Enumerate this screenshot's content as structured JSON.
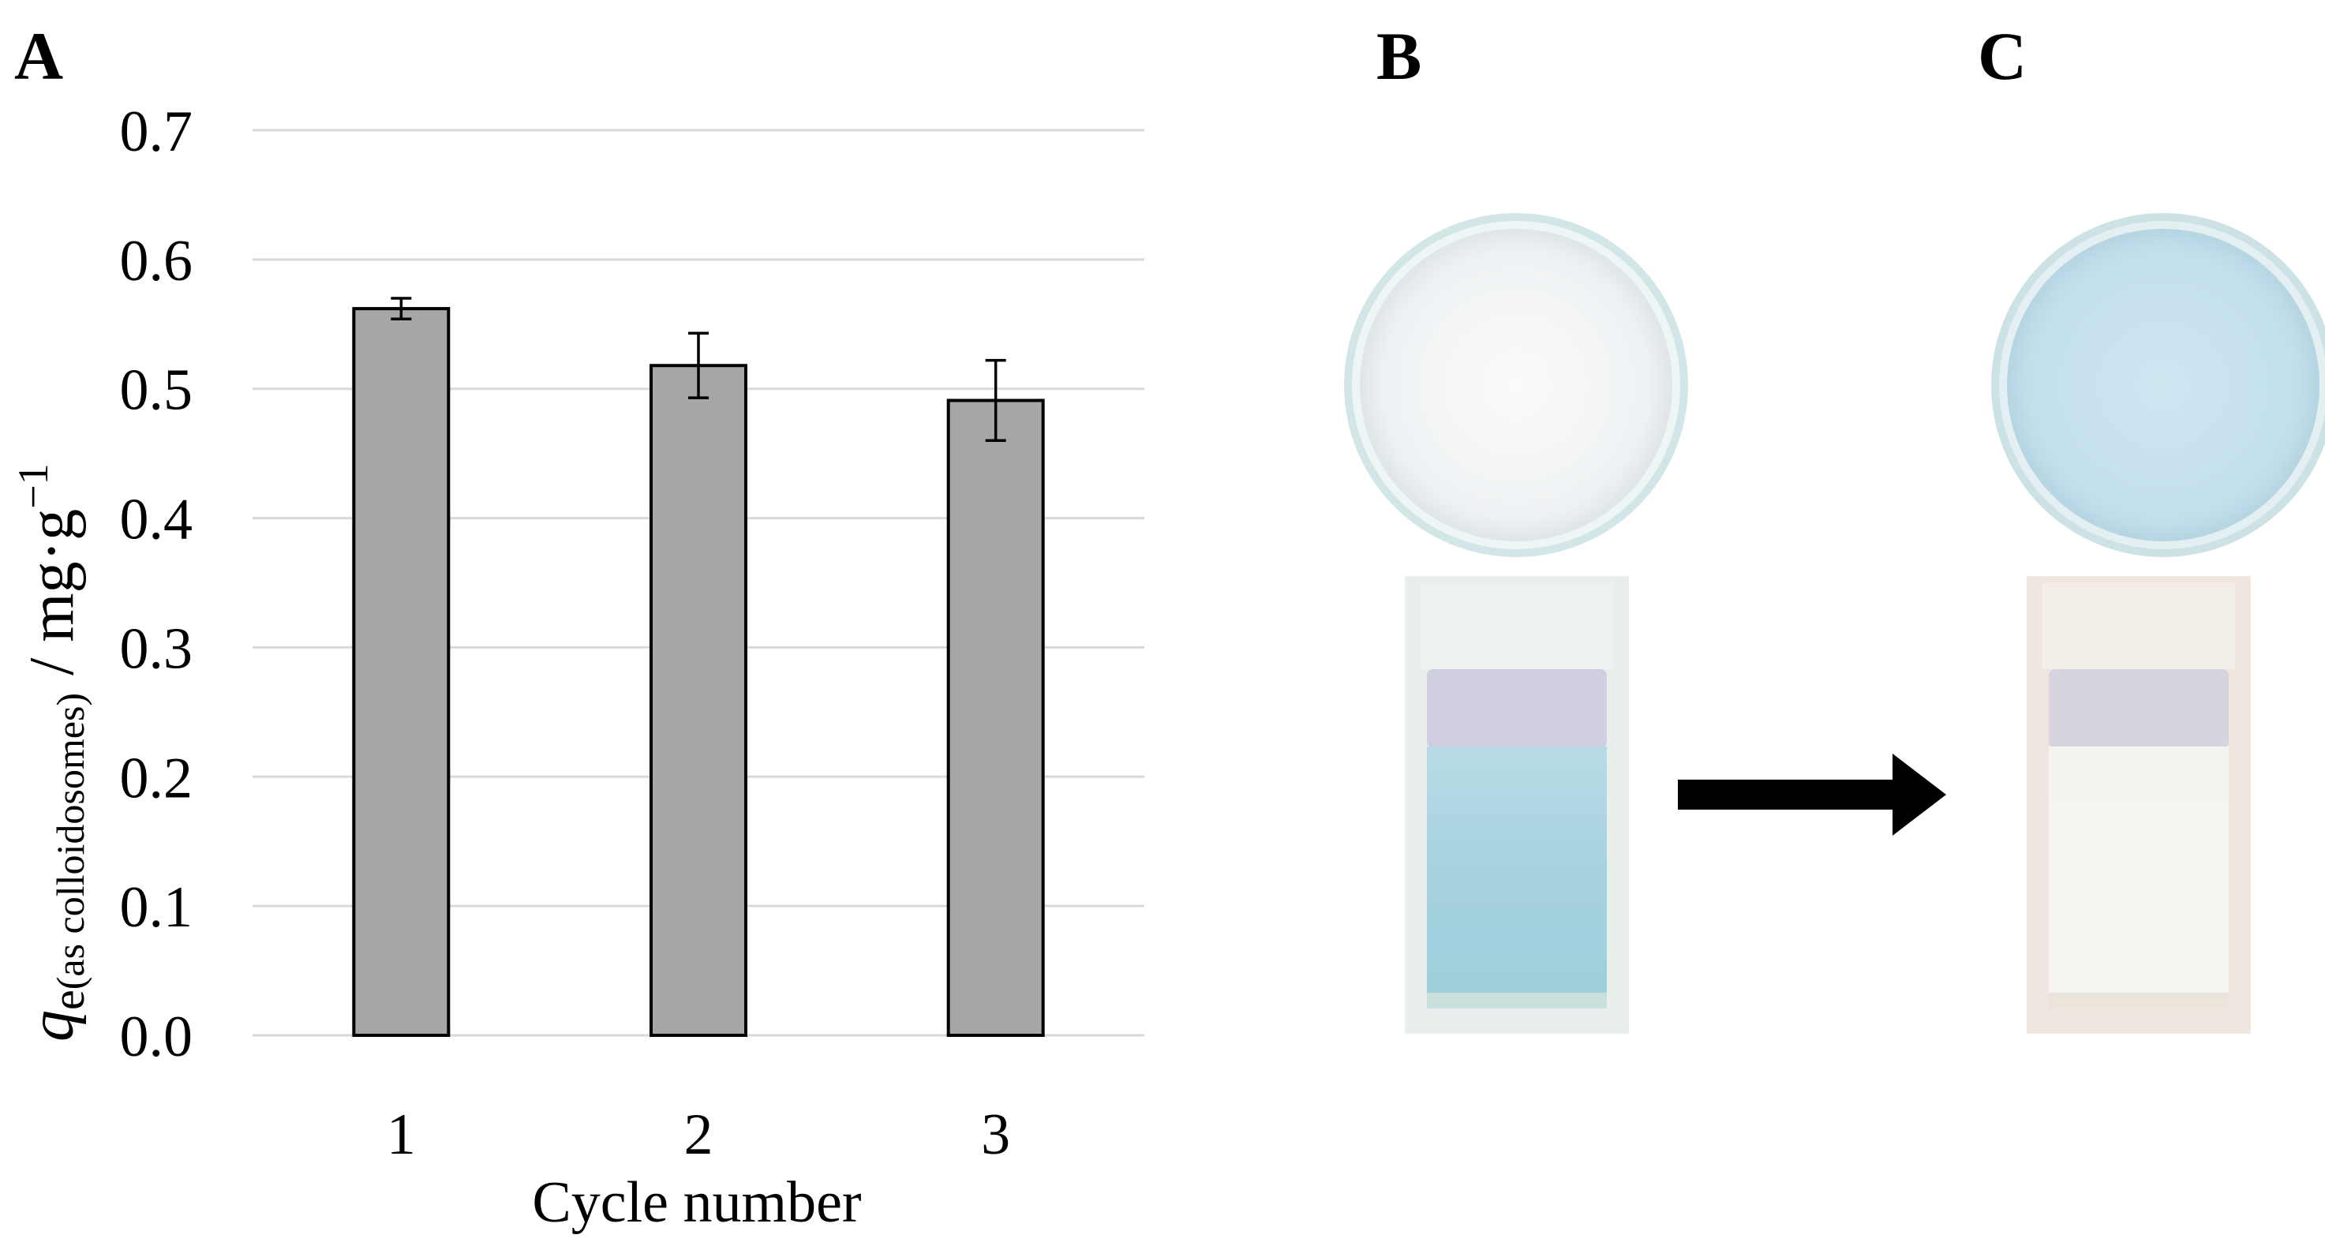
{
  "panels": {
    "a": "A",
    "b": "B",
    "c": "C"
  },
  "chart_data": {
    "type": "bar",
    "categories": [
      "1",
      "2",
      "3"
    ],
    "values": [
      0.562,
      0.518,
      0.491
    ],
    "error": [
      0.008,
      0.025,
      0.031
    ],
    "ylim": [
      0,
      0.7
    ],
    "yticks": [
      "0.0",
      "0.1",
      "0.2",
      "0.3",
      "0.4",
      "0.5",
      "0.6",
      "0.7"
    ],
    "xlabel": "Cycle number",
    "ylabel": {
      "symbol": "q",
      "subscript": "e",
      "qualifier": "(as colloidosomes)",
      "unit": "/ mg·g",
      "exponent": "−1"
    },
    "grid": true,
    "colors": {
      "bar": "#a6a6a6",
      "grid": "#d9d9d9",
      "outline": "#000000"
    }
  },
  "photos": {
    "colors": {
      "dish_rim": "#c7e0e1",
      "powder_before": "#f6f7f8",
      "powder_after": "#c9e3f0",
      "solution_before": "#a9d3e0",
      "solution_after": "#f2efea",
      "arrow": "#000000"
    }
  }
}
